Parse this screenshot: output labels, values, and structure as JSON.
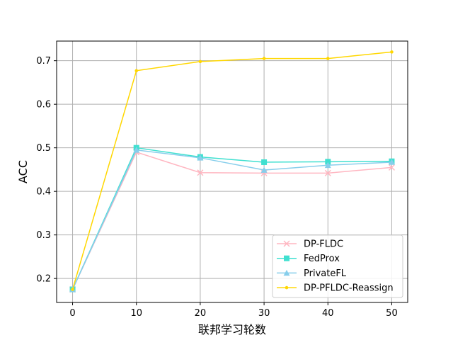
{
  "chart_data": {
    "type": "line",
    "xlabel": "联邦学习轮数",
    "ylabel": "ACC",
    "x": [
      0,
      10,
      20,
      30,
      40,
      50
    ],
    "xticks": [
      0,
      10,
      20,
      30,
      40,
      50
    ],
    "yticks": [
      0.2,
      0.3,
      0.4,
      0.5,
      0.6,
      0.7
    ],
    "xlim": [
      -2.5,
      52.5
    ],
    "ylim": [
      0.145,
      0.745
    ],
    "grid": true,
    "legend_position": "lower-right",
    "series": [
      {
        "name": "DP-FLDC",
        "color": "#FFB6C1",
        "marker": "x",
        "values": [
          0.175,
          0.49,
          0.443,
          0.442,
          0.442,
          0.455
        ]
      },
      {
        "name": "FedProx",
        "color": "#40E0D0",
        "marker": "square",
        "values": [
          0.175,
          0.5,
          0.479,
          0.467,
          0.468,
          0.469
        ]
      },
      {
        "name": "PrivateFL",
        "color": "#87CEEB",
        "marker": "triangle",
        "values": [
          0.175,
          0.495,
          0.477,
          0.449,
          0.46,
          0.467
        ]
      },
      {
        "name": "DP-PFLDC-Reassign",
        "color": "#FFD700",
        "marker": "dot",
        "values": [
          0.175,
          0.677,
          0.698,
          0.705,
          0.705,
          0.72
        ]
      }
    ]
  }
}
